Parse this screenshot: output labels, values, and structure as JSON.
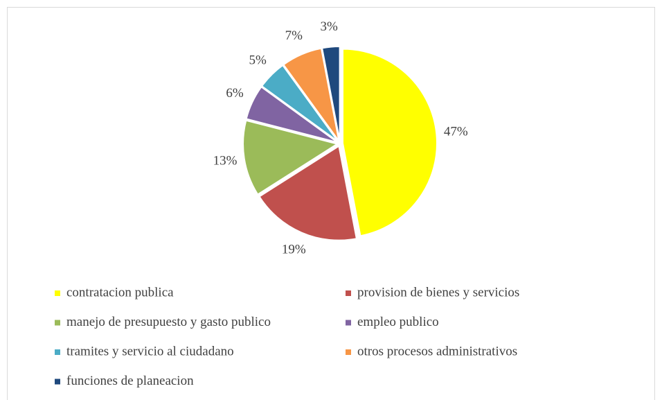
{
  "chart_data": {
    "type": "pie",
    "categories": [
      "contratacion publica",
      "provision de bienes y servicios",
      "manejo de presupuesto y gasto publico",
      "empleo publico",
      "tramites y servicio al ciudadano",
      "otros procesos administrativos",
      "funciones de planeacion"
    ],
    "values": [
      47,
      19,
      13,
      6,
      5,
      7,
      3
    ],
    "value_labels": [
      "47%",
      "19%",
      "13%",
      "6%",
      "5%",
      "7%",
      "3%"
    ],
    "colors": [
      "#ffff00",
      "#c0504d",
      "#9bbb59",
      "#8064a2",
      "#4bacc6",
      "#f79646",
      "#1f497d"
    ],
    "legend": "bottom"
  }
}
